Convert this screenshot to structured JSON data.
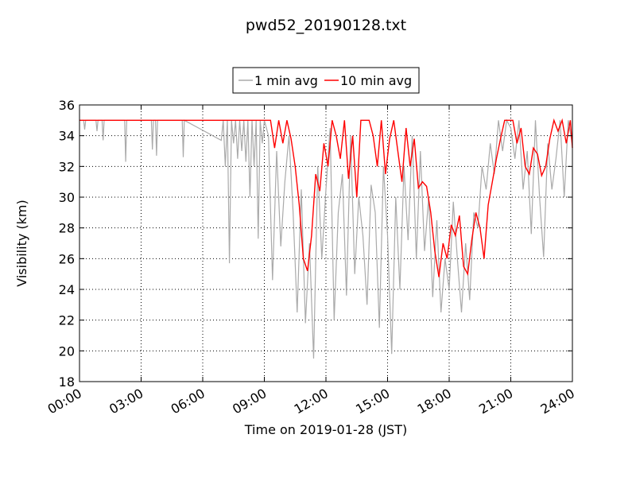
{
  "chart_data": {
    "type": "line",
    "title": "pwd52_20190128.txt",
    "xlabel": "Time on 2019-01-28 (JST)",
    "ylabel": "Visibility (km)",
    "xlim": [
      0,
      24
    ],
    "ylim": [
      18,
      36
    ],
    "x_ticks": [
      0,
      3,
      6,
      9,
      12,
      15,
      18,
      21,
      24
    ],
    "x_tick_labels": [
      "00:00",
      "03:00",
      "06:00",
      "09:00",
      "12:00",
      "15:00",
      "18:00",
      "21:00",
      "24:00"
    ],
    "y_ticks": [
      18,
      20,
      22,
      24,
      26,
      28,
      30,
      32,
      34,
      36
    ],
    "y_tick_labels": [
      "18",
      "20",
      "22",
      "24",
      "26",
      "28",
      "30",
      "32",
      "34",
      "36"
    ],
    "grid": true,
    "legend_position": "top-center",
    "series": [
      {
        "name": "1 min avg",
        "color": "#aaaaaa",
        "x": [
          0,
          0.2,
          0.25,
          0.3,
          0.8,
          0.85,
          0.9,
          1.1,
          1.15,
          1.2,
          2.2,
          2.25,
          2.3,
          3.5,
          3.55,
          3.6,
          3.7,
          3.75,
          3.8,
          5.0,
          5.05,
          5.1,
          6.9,
          7.0,
          7.1,
          7.2,
          7.3,
          7.4,
          7.5,
          7.6,
          7.7,
          7.8,
          7.9,
          8.0,
          8.1,
          8.2,
          8.3,
          8.4,
          8.5,
          8.6,
          8.7,
          8.8,
          8.9,
          9.0,
          9.2,
          9.4,
          9.6,
          9.8,
          10.0,
          10.2,
          10.4,
          10.6,
          10.8,
          11.0,
          11.2,
          11.4,
          11.6,
          11.8,
          12.0,
          12.2,
          12.4,
          12.6,
          12.8,
          13.0,
          13.2,
          13.4,
          13.6,
          13.8,
          14.0,
          14.2,
          14.4,
          14.6,
          14.8,
          15.0,
          15.2,
          15.4,
          15.6,
          15.8,
          16.0,
          16.2,
          16.4,
          16.6,
          16.8,
          17.0,
          17.2,
          17.4,
          17.6,
          17.8,
          18.0,
          18.2,
          18.4,
          18.6,
          18.8,
          19.0,
          19.2,
          19.4,
          19.6,
          19.8,
          20.0,
          20.2,
          20.4,
          20.6,
          20.8,
          21.0,
          21.2,
          21.4,
          21.6,
          21.8,
          22.0,
          22.2,
          22.4,
          22.6,
          22.8,
          23.0,
          23.2,
          23.4,
          23.6,
          23.8,
          24.0
        ],
        "values": [
          35,
          35,
          34.4,
          35,
          35,
          34.3,
          35,
          35,
          33.7,
          35,
          35,
          32.3,
          35,
          35,
          33.1,
          35,
          35,
          32.7,
          35,
          35,
          32.6,
          35,
          33.7,
          35,
          32,
          35,
          25.7,
          35,
          33.5,
          35,
          32.5,
          35,
          33,
          35,
          32.3,
          35,
          30,
          35,
          32,
          35,
          27.3,
          35,
          33.5,
          35,
          34,
          24.6,
          33,
          26.8,
          31,
          34,
          29,
          22.5,
          30.5,
          21.8,
          27,
          19.5,
          32,
          26,
          30.5,
          34.5,
          22,
          29,
          31.5,
          23.6,
          34,
          25,
          30,
          27.5,
          23,
          30.8,
          29,
          21.5,
          32,
          27.5,
          19.8,
          30,
          24,
          32,
          27.2,
          34,
          26,
          33,
          26.5,
          30,
          23.5,
          28.5,
          22.5,
          26,
          24,
          29.7,
          26,
          22.5,
          27,
          23.3,
          29,
          28,
          32,
          30.5,
          33.5,
          31.5,
          35,
          33,
          35,
          34.5,
          32.5,
          35,
          30.5,
          33,
          27.6,
          35,
          30,
          26.1,
          33.5,
          30.5,
          32.5,
          35,
          30,
          35,
          33.4
        ]
      },
      {
        "name": "10 min avg",
        "color": "#ff0000",
        "x": [
          0,
          9.0,
          9.3,
          9.5,
          9.7,
          9.9,
          10.1,
          10.3,
          10.5,
          10.7,
          10.9,
          11.1,
          11.3,
          11.5,
          11.7,
          11.9,
          12.1,
          12.3,
          12.5,
          12.7,
          12.9,
          13.1,
          13.3,
          13.5,
          13.7,
          13.9,
          14.1,
          14.3,
          14.5,
          14.7,
          14.9,
          15.1,
          15.3,
          15.5,
          15.7,
          15.9,
          16.1,
          16.3,
          16.5,
          16.7,
          16.9,
          17.1,
          17.3,
          17.5,
          17.7,
          17.9,
          18.1,
          18.3,
          18.5,
          18.7,
          18.9,
          19.1,
          19.3,
          19.5,
          19.7,
          19.9,
          20.1,
          20.3,
          20.5,
          20.7,
          20.9,
          21.1,
          21.3,
          21.5,
          21.7,
          21.9,
          22.1,
          22.3,
          22.5,
          22.7,
          22.9,
          23.1,
          23.3,
          23.5,
          23.7,
          23.9,
          24.0
        ],
        "values": [
          35,
          35,
          35,
          33.2,
          35,
          33.5,
          35,
          33.8,
          32,
          29.5,
          26,
          25.2,
          27.5,
          31.5,
          30.4,
          33.5,
          32,
          35,
          34,
          32.5,
          35,
          31.2,
          34,
          30,
          35,
          35,
          35,
          34,
          32,
          35,
          31.5,
          33.8,
          35,
          33,
          31,
          34.5,
          32,
          33.8,
          30.6,
          31,
          30.7,
          29,
          26.5,
          24.8,
          27,
          26,
          28.2,
          27.5,
          28.8,
          25.5,
          25,
          27.2,
          29,
          28,
          26,
          29.5,
          31,
          32.5,
          33.8,
          35,
          35,
          35,
          33.5,
          34.5,
          32,
          31.5,
          33.2,
          32.8,
          31.4,
          32,
          33.8,
          35,
          34.3,
          35,
          33.5,
          35,
          33.2
        ]
      }
    ]
  }
}
